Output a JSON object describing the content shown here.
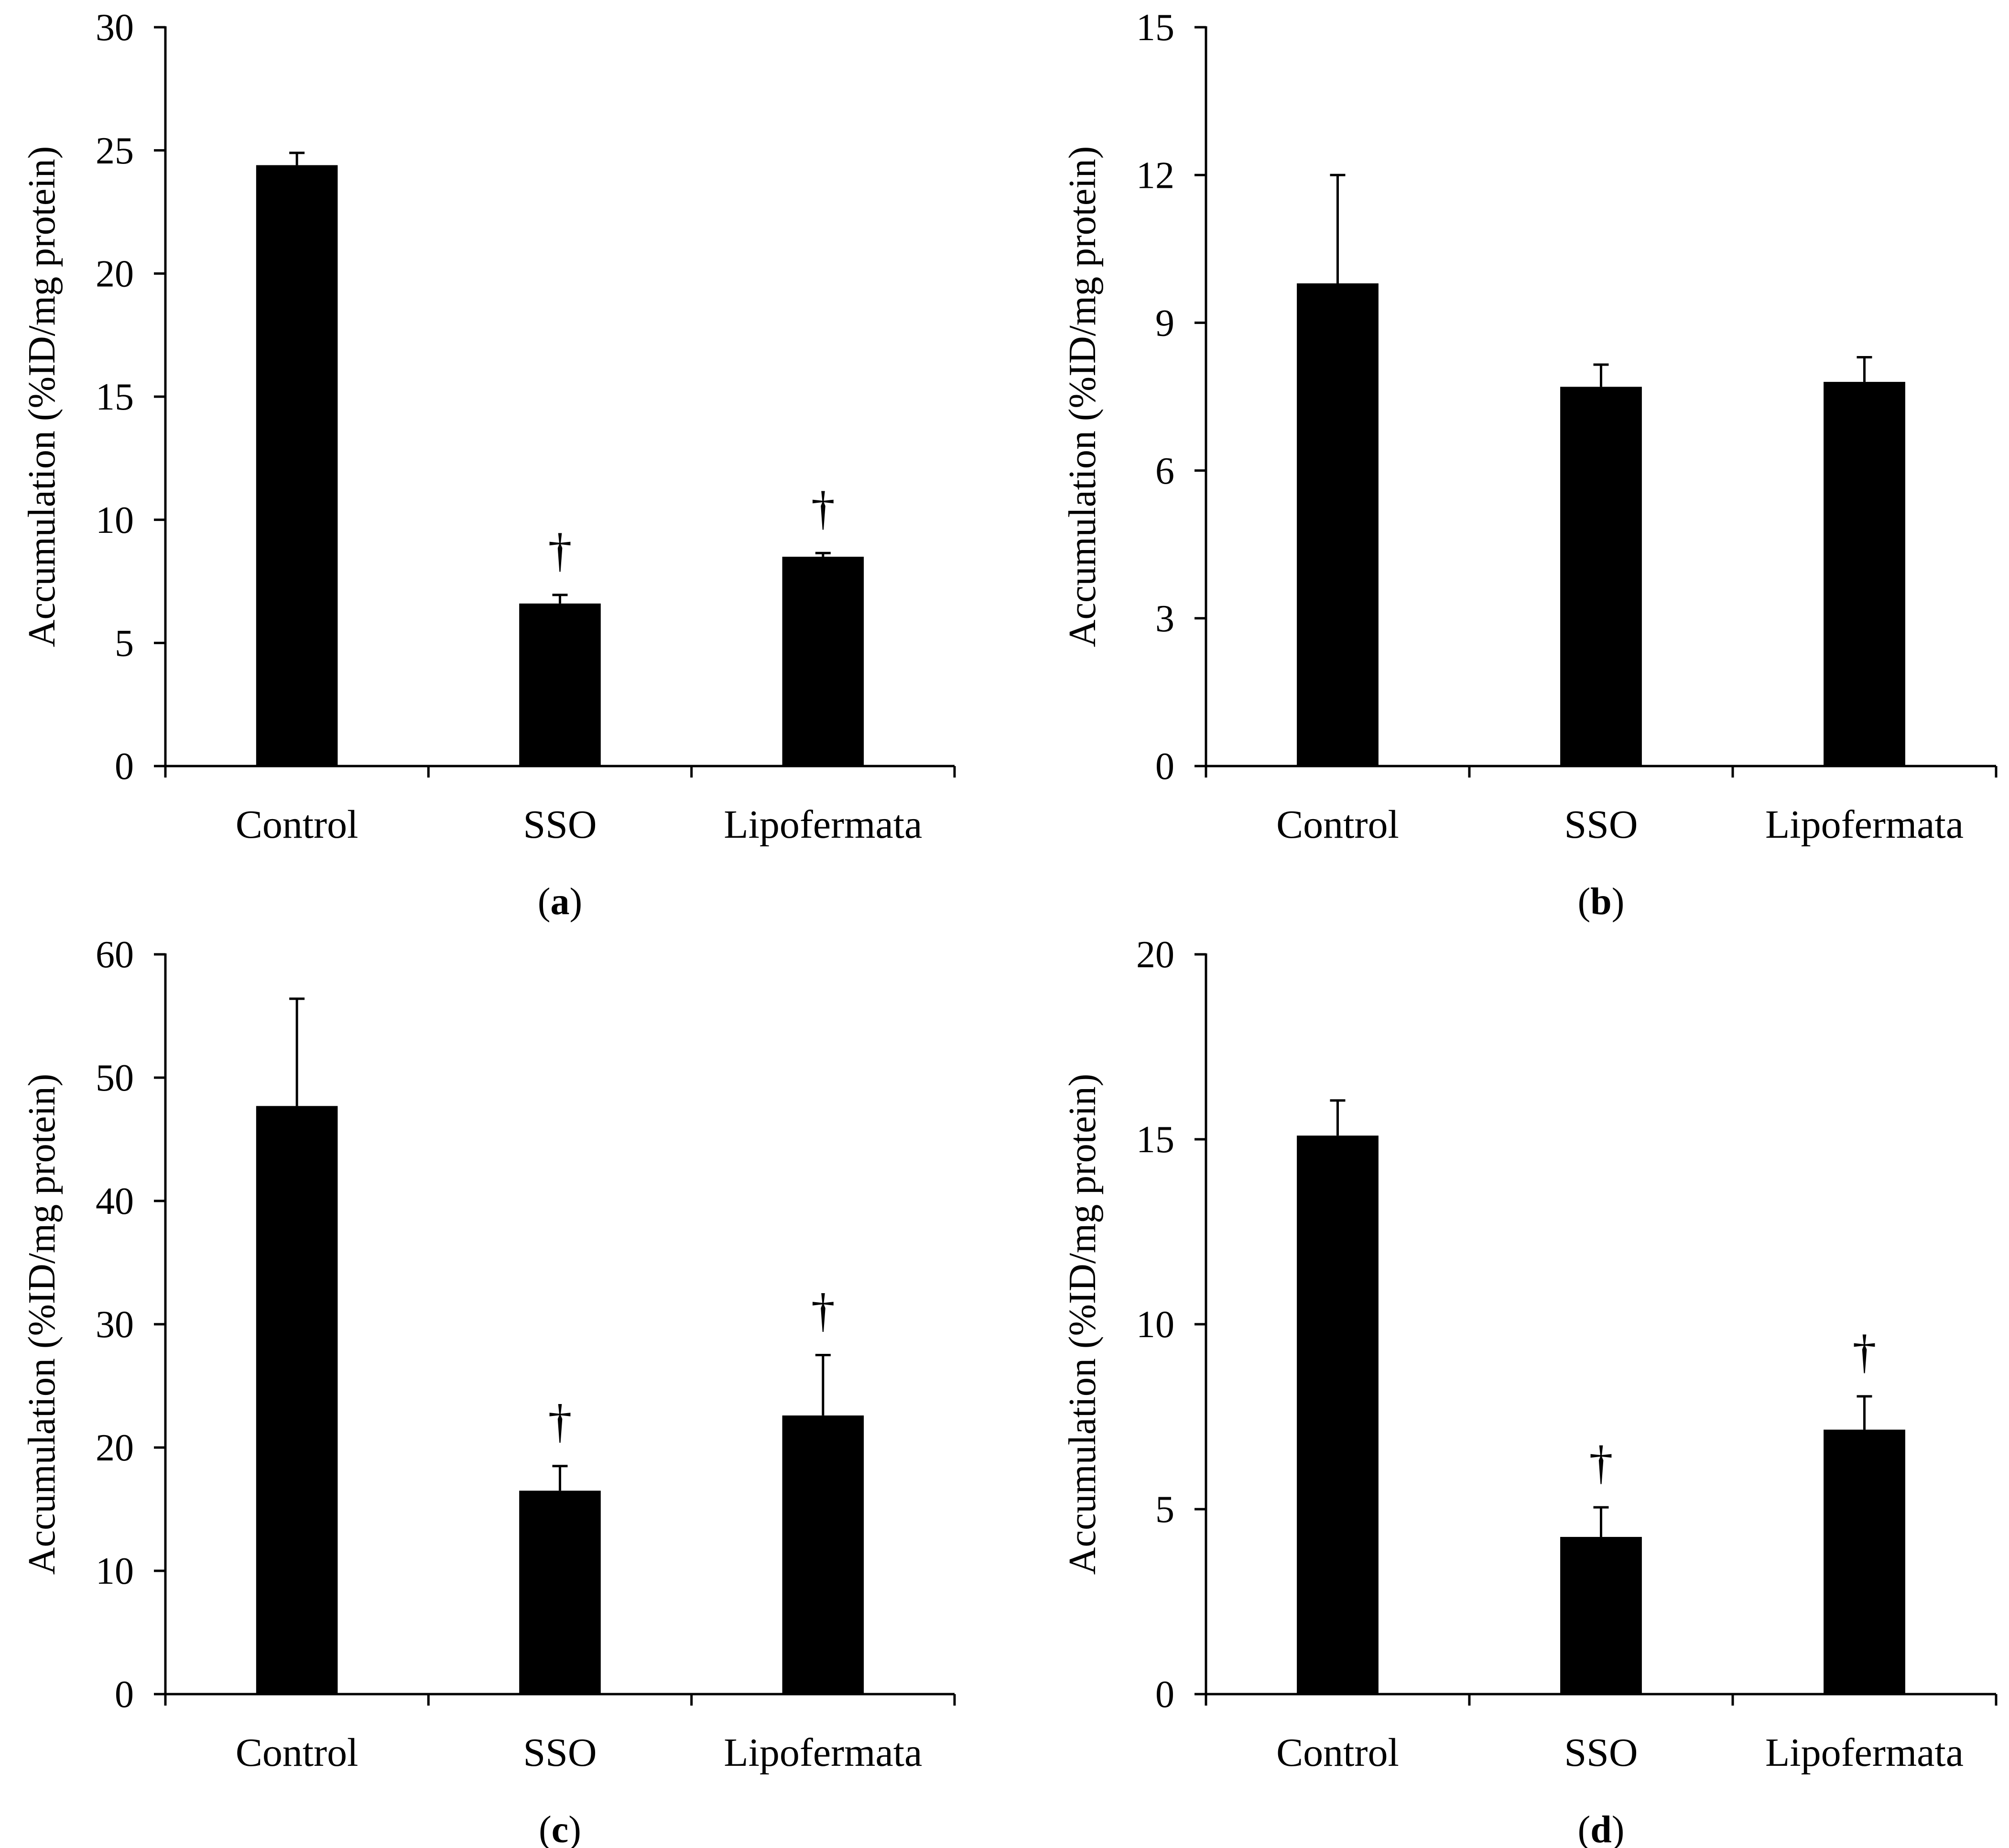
{
  "colors": {
    "bar": "#000000",
    "axis": "#000000",
    "background": "#ffffff"
  },
  "chart_data": [
    {
      "type": "bar",
      "panel_label": "(a)",
      "panel_letter": "a",
      "title": "",
      "xlabel": "",
      "ylabel": "Accumulation (%ID/mg protein)",
      "ylim": [
        0,
        30
      ],
      "yticks": [
        0,
        5,
        10,
        15,
        20,
        25,
        30
      ],
      "ytick_labels": [
        "0",
        "5",
        "10",
        "15",
        "20",
        "25",
        "30"
      ],
      "categories": [
        "Control",
        "SSO",
        "Lipofermata"
      ],
      "values": [
        24.4,
        6.6,
        8.5
      ],
      "errors": [
        0.5,
        0.35,
        0.15
      ],
      "significance": [
        "",
        "†",
        "†"
      ],
      "grid": false,
      "legend": "none"
    },
    {
      "type": "bar",
      "panel_label": "(b)",
      "panel_letter": "b",
      "title": "",
      "xlabel": "",
      "ylabel": "Accumulation (%ID/mg protein)",
      "ylim": [
        0,
        15
      ],
      "yticks": [
        0,
        3,
        6,
        9,
        12,
        15
      ],
      "ytick_labels": [
        "0",
        "3",
        "6",
        "9",
        "12",
        "15"
      ],
      "categories": [
        "Control",
        "SSO",
        "Lipofermata"
      ],
      "values": [
        9.8,
        7.7,
        7.8
      ],
      "errors": [
        2.2,
        0.45,
        0.5
      ],
      "significance": [
        "",
        "",
        ""
      ],
      "grid": false,
      "legend": "none"
    },
    {
      "type": "bar",
      "panel_label": "(c)",
      "panel_letter": "c",
      "title": "",
      "xlabel": "",
      "ylabel": "Accumulation (%ID/mg protein)",
      "ylim": [
        0,
        60
      ],
      "yticks": [
        0,
        10,
        20,
        30,
        40,
        50,
        60
      ],
      "ytick_labels": [
        "0",
        "10",
        "20",
        "30",
        "40",
        "50",
        "60"
      ],
      "categories": [
        "Control",
        "SSO",
        "Lipofermata"
      ],
      "values": [
        47.7,
        16.5,
        22.6
      ],
      "errors": [
        8.7,
        2.0,
        4.9
      ],
      "significance": [
        "",
        "†",
        "†"
      ],
      "grid": false,
      "legend": "none"
    },
    {
      "type": "bar",
      "panel_label": "(d)",
      "panel_letter": "d",
      "title": "",
      "xlabel": "",
      "ylabel": "Accumulation (%ID/mg protein)",
      "ylim": [
        0,
        20
      ],
      "yticks": [
        0,
        5,
        10,
        15,
        20
      ],
      "ytick_labels": [
        "0",
        "5",
        "10",
        "15",
        "20"
      ],
      "categories": [
        "Control",
        "SSO",
        "Lipofermata"
      ],
      "values": [
        15.1,
        4.25,
        7.15
      ],
      "errors": [
        0.95,
        0.8,
        0.9
      ],
      "significance": [
        "",
        "†",
        "†"
      ],
      "grid": false,
      "legend": "none"
    }
  ]
}
